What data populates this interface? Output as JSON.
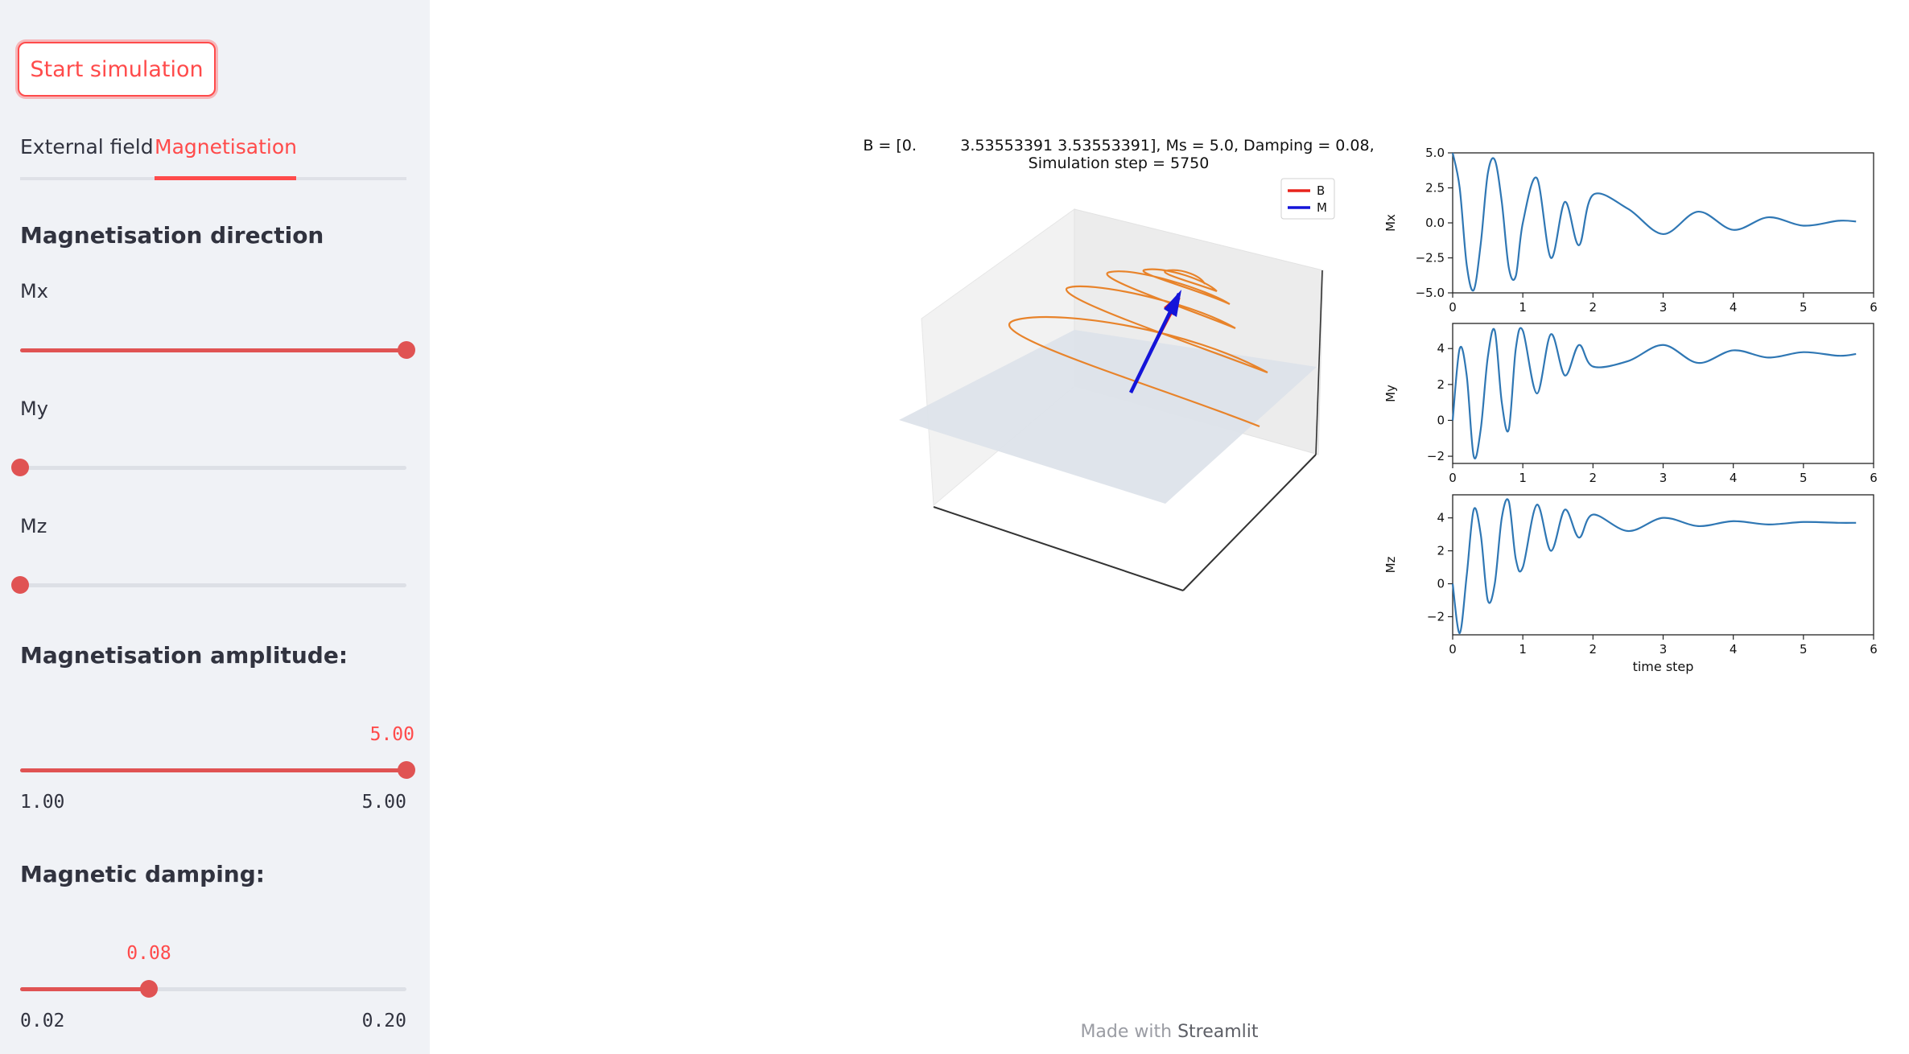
{
  "sidebar": {
    "start_button": "Start simulation",
    "tabs": [
      {
        "label": "External field",
        "active": false
      },
      {
        "label": "Magnetisation",
        "active": true
      }
    ],
    "direction_title": "Magnetisation direction",
    "sliders": {
      "mx": {
        "label": "Mx",
        "value": 1.0,
        "min": 0.0,
        "max": 1.0
      },
      "my": {
        "label": "My",
        "value": 0.0,
        "min": 0.0,
        "max": 1.0
      },
      "mz": {
        "label": "Mz",
        "value": 0.0,
        "min": 0.0,
        "max": 1.0
      }
    },
    "amplitude": {
      "title": "Magnetisation amplitude:",
      "value": 5.0,
      "value_label": "5.00",
      "min": 1.0,
      "min_label": "1.00",
      "max": 5.0,
      "max_label": "5.00"
    },
    "damping": {
      "title": "Magnetic damping:",
      "value": 0.08,
      "value_label": "0.08",
      "min": 0.02,
      "min_label": "0.02",
      "max": 0.2,
      "max_label": "0.20"
    }
  },
  "figure": {
    "title_line1": "B = [0.         3.53553391 3.53553391], Ms = 5.0, Damping = 0.08,",
    "title_line2": "Simulation step = 5750",
    "legend": [
      {
        "label": "B",
        "color": "#e8231c"
      },
      {
        "label": "M",
        "color": "#1414d9"
      }
    ],
    "trajectory_color": "#e8832a",
    "line_color": "#2f77b4"
  },
  "chart_data": [
    {
      "type": "line",
      "ylabel": "Mx",
      "xlim": [
        0,
        6
      ],
      "ylim": [
        -5.0,
        5.0
      ],
      "xticks": [
        "0",
        "1",
        "2",
        "3",
        "4",
        "5",
        "6"
      ],
      "yticks": [
        "5.0",
        "2.5",
        "0.0",
        "−2.5",
        "−5.0"
      ],
      "ytick_values": [
        5.0,
        2.5,
        0.0,
        -2.5,
        -5.0
      ],
      "x": [
        0,
        0.1,
        0.2,
        0.3,
        0.4,
        0.5,
        0.6,
        0.7,
        0.8,
        0.9,
        1.0,
        1.2,
        1.4,
        1.6,
        1.8,
        2.0,
        2.5,
        3.0,
        3.5,
        4.0,
        4.5,
        5.0,
        5.5,
        5.75
      ],
      "series": [
        {
          "values": [
            5.0,
            2.5,
            -3.0,
            -4.8,
            -1.5,
            3.5,
            4.5,
            1.5,
            -3.2,
            -3.8,
            0.0,
            3.2,
            -2.5,
            1.5,
            -1.6,
            2.0,
            1.0,
            -0.8,
            0.8,
            -0.5,
            0.4,
            -0.2,
            0.15,
            0.1
          ]
        }
      ]
    },
    {
      "type": "line",
      "ylabel": "My",
      "xlim": [
        0,
        6
      ],
      "ylim": [
        -2.4,
        5.4
      ],
      "xticks": [
        "0",
        "1",
        "2",
        "3",
        "4",
        "5",
        "6"
      ],
      "yticks": [
        "4",
        "2",
        "0",
        "−2"
      ],
      "ytick_values": [
        4,
        2,
        0,
        -2
      ],
      "x": [
        0,
        0.1,
        0.2,
        0.3,
        0.4,
        0.5,
        0.6,
        0.7,
        0.8,
        0.9,
        1.0,
        1.2,
        1.4,
        1.6,
        1.8,
        2.0,
        2.5,
        3.0,
        3.5,
        4.0,
        4.5,
        5.0,
        5.5,
        5.75
      ],
      "series": [
        {
          "values": [
            0.0,
            4.0,
            2.5,
            -2.0,
            -0.5,
            3.5,
            5.0,
            1.0,
            -0.5,
            4.0,
            5.0,
            1.5,
            4.8,
            2.5,
            4.2,
            3.0,
            3.3,
            4.2,
            3.2,
            3.9,
            3.5,
            3.8,
            3.6,
            3.7
          ]
        }
      ]
    },
    {
      "type": "line",
      "ylabel": "Mz",
      "xlabel": "time step",
      "xlim": [
        0,
        6
      ],
      "ylim": [
        -3.1,
        5.4
      ],
      "xticks": [
        "0",
        "1",
        "2",
        "3",
        "4",
        "5",
        "6"
      ],
      "yticks": [
        "4",
        "2",
        "0",
        "−2"
      ],
      "ytick_values": [
        4,
        2,
        0,
        -2
      ],
      "x": [
        0,
        0.1,
        0.2,
        0.3,
        0.4,
        0.5,
        0.6,
        0.7,
        0.8,
        0.9,
        1.0,
        1.2,
        1.4,
        1.6,
        1.8,
        2.0,
        2.5,
        3.0,
        3.5,
        4.0,
        4.5,
        5.0,
        5.5,
        5.75
      ],
      "series": [
        {
          "values": [
            0.0,
            -3.0,
            0.5,
            4.5,
            3.0,
            -1.0,
            0.0,
            4.0,
            5.0,
            1.5,
            1.0,
            4.8,
            2.0,
            4.5,
            2.8,
            4.2,
            3.2,
            4.0,
            3.5,
            3.8,
            3.6,
            3.75,
            3.7,
            3.7
          ]
        }
      ]
    }
  ],
  "footer": {
    "made_with": "Made with ",
    "brand": "Streamlit"
  }
}
